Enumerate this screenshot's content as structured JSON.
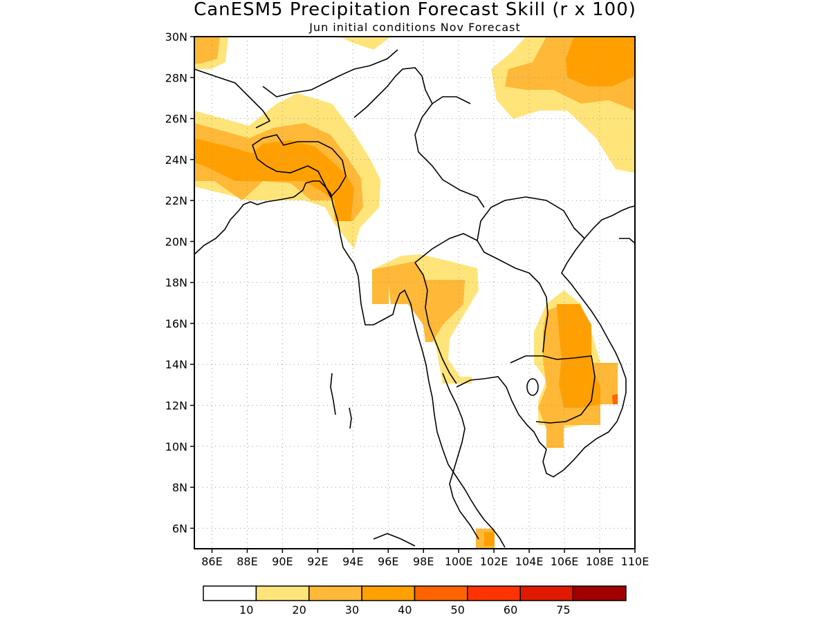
{
  "title": "CanESM5 Precipitation Forecast Skill (r x 100)",
  "subtitle": "Jun initial conditions   Nov Forecast",
  "colors": {
    "white": "#ffffff",
    "c10_20": "#ffe47a",
    "c20_30": "#ffb837",
    "c30_40": "#ffa000",
    "c40_50": "#ff6400",
    "c50_60": "#ff3300",
    "c60_75": "#e01a00",
    "c75_up": "#a00000",
    "coast": "#000000",
    "grid": "#999999"
  },
  "map": {
    "lon_range": [
      85,
      110
    ],
    "lat_range": [
      5,
      30
    ],
    "lon_ticks": [
      "86E",
      "88E",
      "90E",
      "92E",
      "94E",
      "96E",
      "98E",
      "100E",
      "102E",
      "104E",
      "106E",
      "108E",
      "110E"
    ],
    "lat_ticks": [
      "6N",
      "8N",
      "10N",
      "12N",
      "14N",
      "16N",
      "18N",
      "20N",
      "22N",
      "24N",
      "26N",
      "28N",
      "30N"
    ]
  },
  "colorbar": {
    "labels": [
      "10",
      "20",
      "30",
      "40",
      "50",
      "60",
      "75"
    ]
  }
}
